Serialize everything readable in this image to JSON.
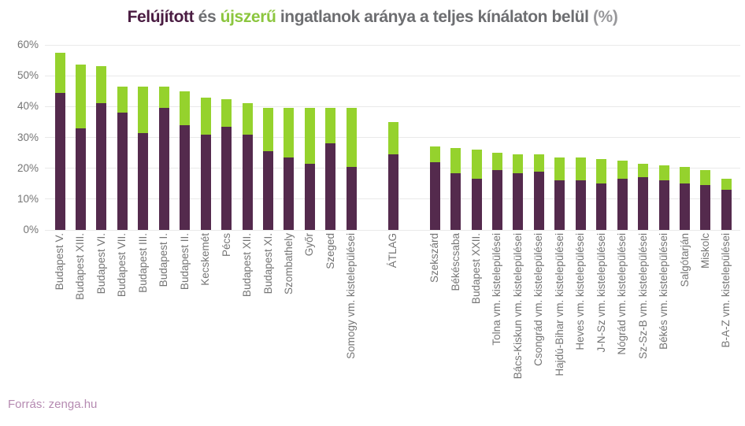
{
  "title": {
    "renovated": "Felújított",
    "conjunction": "és",
    "like_new": "újszerű",
    "rest": "ingatlanok aránya a teljes kínálaton belül",
    "suffix": "(%)"
  },
  "source": "Forrás: zenga.hu",
  "colors": {
    "background": "#ffffff",
    "bar_renovated": "#542a4d",
    "bar_like_new": "#95d22d",
    "title_renovated": "#4a1c42",
    "title_like_new": "#8cc63f",
    "title_gray": "#6d6e71",
    "title_suffix_gray": "#98989b",
    "axis_text": "#757575",
    "gridline": "#e9e9e9",
    "source_text": "#b58ab1"
  },
  "chart_data": {
    "type": "bar",
    "stacked": true,
    "title": "Felújított és újszerű ingatlanok aránya a teljes kínálaton belül (%)",
    "xlabel": "",
    "ylabel": "",
    "ylim": [
      0,
      60
    ],
    "yticks": [
      0,
      10,
      20,
      30,
      40,
      50,
      60
    ],
    "ytick_suffix": "%",
    "grid": true,
    "legend_position": "none (series colors are indicated by the colored words in the title)",
    "gap_before_indices": [
      15,
      16
    ],
    "categories": [
      "Budapest V.",
      "Budapest XIII.",
      "Budapest VI.",
      "Budapest VII.",
      "Budapest III.",
      "Budapest I.",
      "Budapest II.",
      "Kecskemét",
      "Pécs",
      "Budapest XII.",
      "Budapest XI.",
      "Szombathely",
      "Győr",
      "Szeged",
      "Somogy vm. kistelepülései",
      "ÁTLAG",
      "Szekszárd",
      "Békéscsaba",
      "Budapest XXII.",
      "Tolna vm. kistelepülései",
      "Bács-Kiskun vm. kistelepülései",
      "Csongrád vm. kistelepülései",
      "Hajdú-Bihar vm. kistelepülései",
      "Heves vm. kistelepülései",
      "J-N-Sz vm. kistelepülései",
      "Nógrád vm. kistelepülései",
      "Sz-Sz-B vm. kistelepülései",
      "Békés vm. kistelepülései",
      "Salgótarján",
      "Miskolc",
      "B-A-Z vm. kistelepülései"
    ],
    "series": [
      {
        "name": "Felújított",
        "color": "#542a4d",
        "values": [
          44.5,
          33,
          41,
          38,
          31.5,
          39.5,
          34,
          31,
          33.5,
          31,
          25.5,
          23.5,
          21.5,
          28,
          20.5,
          24.5,
          22,
          18.5,
          16.5,
          19.5,
          18.5,
          19,
          16,
          16,
          15,
          16.5,
          17,
          16,
          15,
          14.5,
          13
        ]
      },
      {
        "name": "Újszerű",
        "color": "#95d22d",
        "values": [
          13,
          20.5,
          12,
          8.5,
          15,
          7,
          11,
          12,
          9,
          10,
          14,
          16,
          18,
          11.5,
          19,
          10.5,
          5,
          8,
          9.5,
          5.5,
          6,
          5.5,
          7.5,
          7.5,
          8,
          6,
          4.5,
          5,
          5.5,
          5,
          3.5
        ]
      }
    ]
  }
}
